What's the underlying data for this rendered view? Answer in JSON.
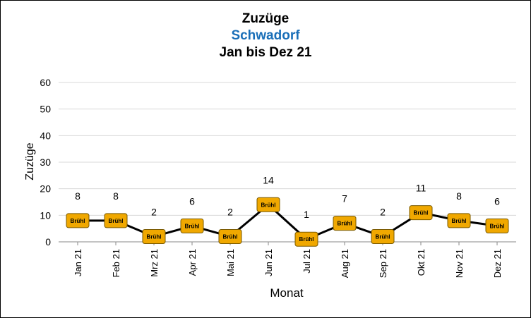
{
  "chart_data": {
    "type": "line",
    "title": "Zuzüge",
    "subtitle": "Schwadorf",
    "subtitle_color": "#1a6fb8",
    "period": "Jan bis Dez 21",
    "xlabel": "Monat",
    "ylabel": "Zuzüge",
    "ylim": [
      0,
      60
    ],
    "yticks": [
      0,
      10,
      20,
      30,
      40,
      50,
      60
    ],
    "grid": true,
    "categories": [
      "Jan 21",
      "Feb 21",
      "Mrz 21",
      "Apr 21",
      "Mai 21",
      "Jun 21",
      "Jul 21",
      "Aug 21",
      "Sep 21",
      "Okt 21",
      "Nov 21",
      "Dez 21"
    ],
    "series": [
      {
        "marker_label": "Brühl",
        "values": [
          8,
          8,
          2,
          6,
          2,
          14,
          1,
          7,
          2,
          11,
          8,
          6
        ],
        "line_color": "#000000",
        "marker_color": "#f0a800"
      }
    ]
  }
}
